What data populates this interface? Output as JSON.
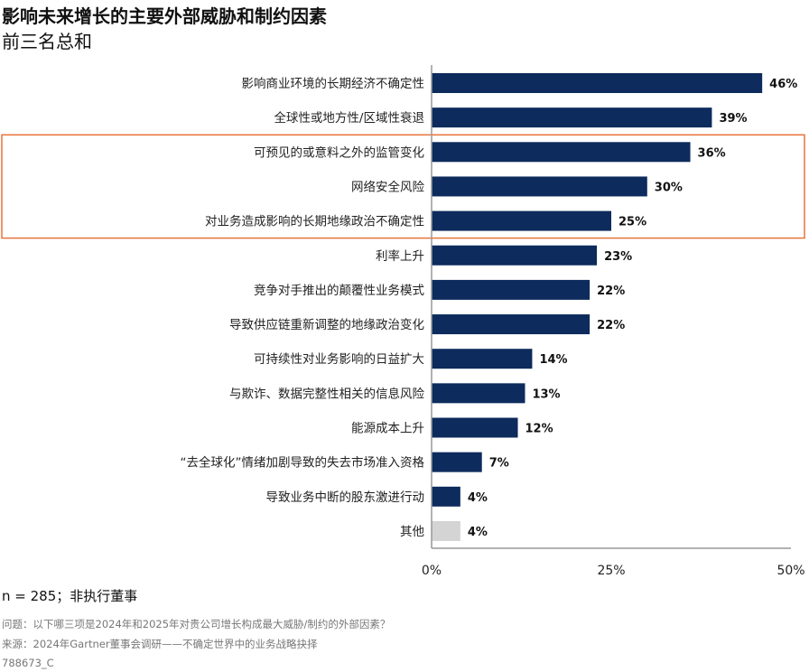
{
  "chart_data": {
    "type": "bar",
    "orientation": "horizontal",
    "title": "影响未来增长的主要外部威胁和制约因素",
    "subtitle": "前三名总和",
    "categories": [
      "影响商业环境的长期经济不确定性",
      "全球性或地方性/区域性衰退",
      "可预见的或意料之外的监管变化",
      "网络安全风险",
      "对业务造成影响的长期地缘政治不确定性",
      "利率上升",
      "竞争对手推出的颠覆性业务模式",
      "导致供应链重新调整的地缘政治变化",
      "可持续性对业务影响的日益扩大",
      "与欺诈、数据完整性相关的信息风险",
      "能源成本上升",
      "“去全球化”情绪加剧导致的失去市场准入资格",
      "导致业务中断的股东激进行动",
      "其他"
    ],
    "values": [
      46,
      39,
      36,
      30,
      25,
      23,
      22,
      22,
      14,
      13,
      12,
      7,
      4,
      4
    ],
    "data_labels": [
      "46%",
      "39%",
      "36%",
      "30%",
      "25%",
      "23%",
      "22%",
      "22%",
      "14%",
      "13%",
      "12%",
      "7%",
      "4%",
      "4%"
    ],
    "highlighted": [
      2,
      3,
      4
    ],
    "xlim": [
      0,
      50
    ],
    "xticks": [
      0,
      25,
      50
    ],
    "xtick_labels": [
      "0%",
      "25%",
      "50%"
    ],
    "colors": {
      "bar": "#0d2b5c",
      "other": "#d4d4d4",
      "highlight": "#e8743b",
      "axis": "#999999"
    }
  },
  "footer": {
    "n": "n = 285；非执行董事",
    "question": "问题：以下哪三项是2024年和2025年对贵公司增长构成最大威胁/制约的外部因素？",
    "source": "来源：2024年Gartner董事会调研——不确定世界中的业务战略抉择",
    "id": "788673_C"
  }
}
